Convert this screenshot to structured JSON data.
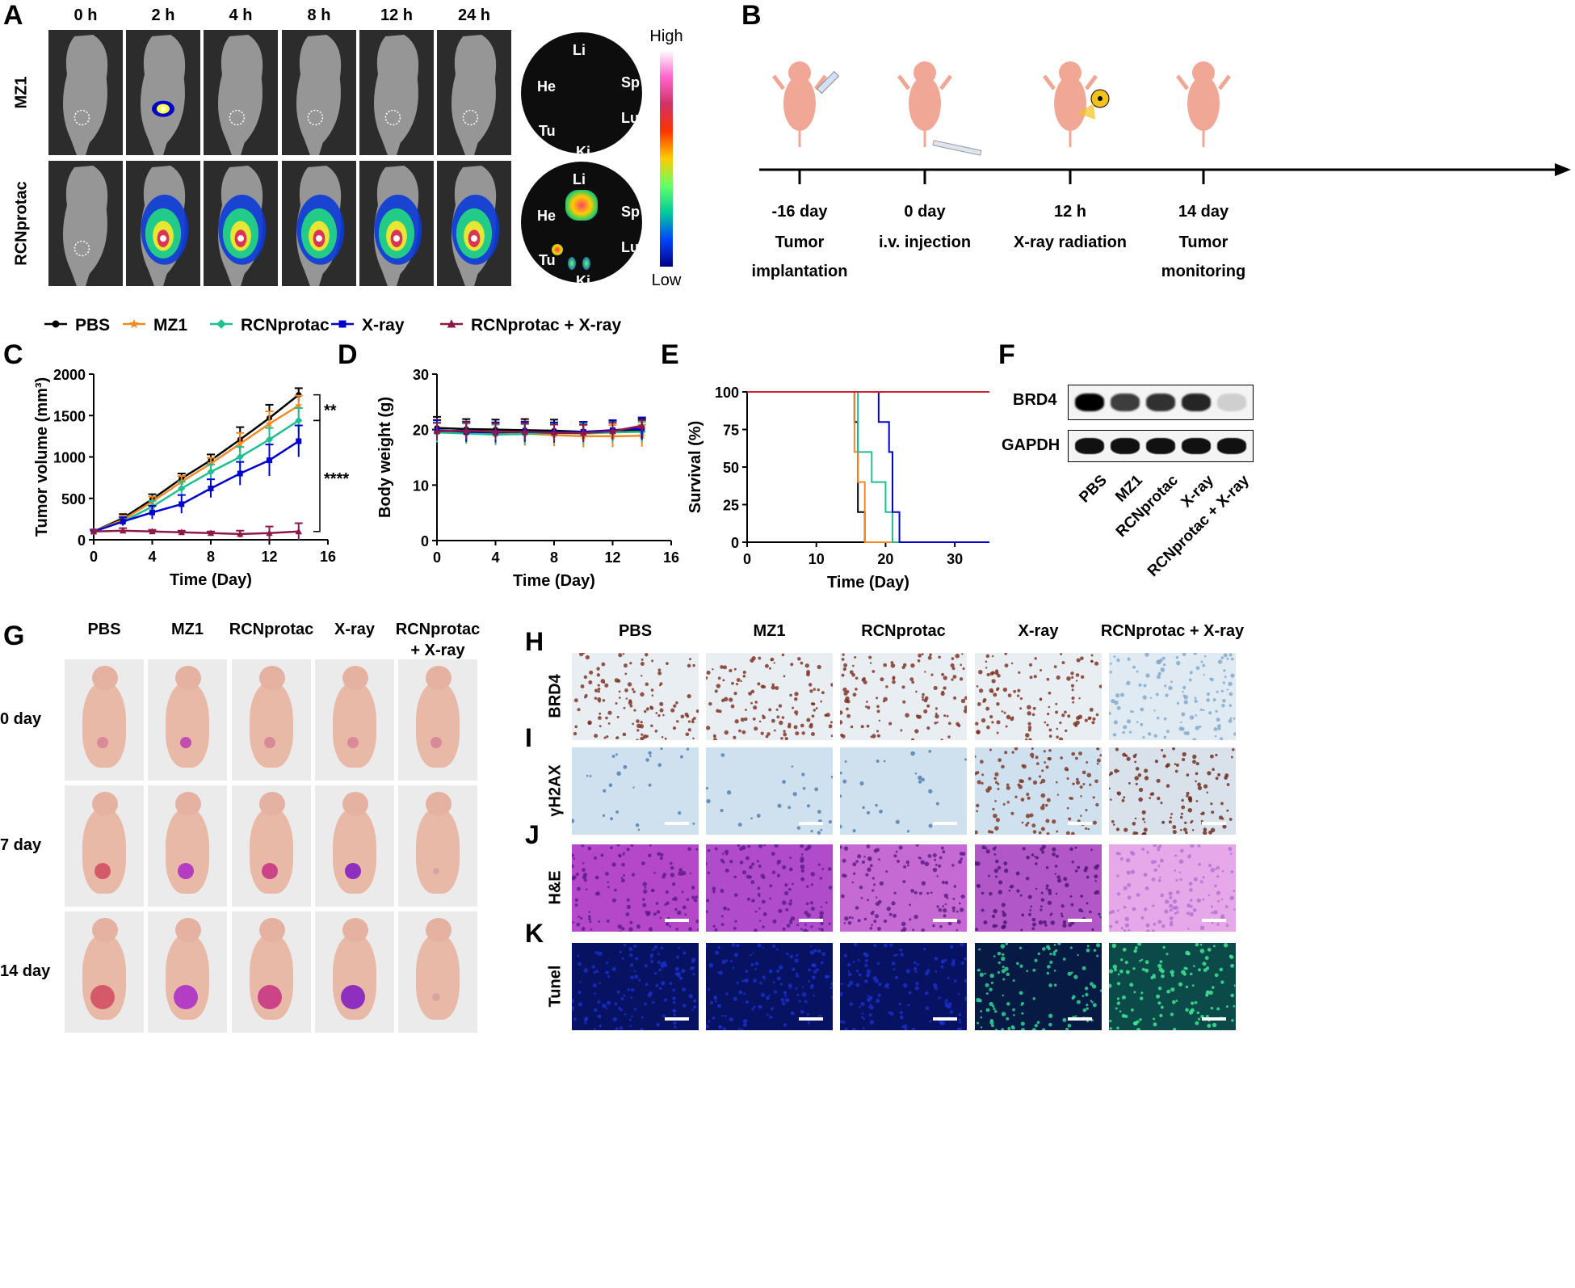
{
  "panelA": {
    "letter": "A",
    "times": [
      "0 h",
      "2 h",
      "4 h",
      "8 h",
      "12 h",
      "24 h"
    ],
    "rows": [
      "MZ1",
      "RCNprotac"
    ],
    "organs": [
      "Li",
      "He",
      "Sp",
      "Tu",
      "Lu",
      "Ki"
    ],
    "colorbar": {
      "high": "High",
      "low": "Low",
      "colors": [
        "#ffffff",
        "#ff66cc",
        "#cc3366",
        "#ff3300",
        "#ffcc00",
        "#66ff66",
        "#00cc99",
        "#0044ff",
        "#000080"
      ]
    }
  },
  "panelB": {
    "letter": "B",
    "steps": [
      {
        "time": "-16 day",
        "line1": "Tumor",
        "line2": "implantation"
      },
      {
        "time": "0 day",
        "line1": "i.v. injection",
        "line2": ""
      },
      {
        "time": "12 h",
        "line1": "X-ray radiation",
        "line2": ""
      },
      {
        "time": "14 day",
        "line1": "Tumor",
        "line2": "monitoring"
      }
    ]
  },
  "legend": [
    {
      "name": "PBS",
      "color": "#000000",
      "marker": "circle"
    },
    {
      "name": "MZ1",
      "color": "#f08a24",
      "marker": "star"
    },
    {
      "name": "RCNprotac",
      "color": "#1fbf8f",
      "marker": "diamond"
    },
    {
      "name": "X-ray",
      "color": "#0000cc",
      "marker": "square"
    },
    {
      "name": "RCNprotac + X-ray",
      "color": "#8b1a4a",
      "marker": "triangle"
    }
  ],
  "chart_data": [
    {
      "panel": "C",
      "type": "line",
      "xlabel": "Time (Day)",
      "ylabel": "Tumor volume (mm³)",
      "xlim": [
        0,
        16
      ],
      "ylim": [
        0,
        2000
      ],
      "xticks": [
        0,
        4,
        8,
        12,
        16
      ],
      "yticks": [
        0,
        500,
        1000,
        1500,
        2000
      ],
      "x": [
        0,
        2,
        4,
        6,
        8,
        10,
        12,
        14
      ],
      "series": [
        {
          "name": "PBS",
          "color": "#000000",
          "values": [
            100,
            260,
            490,
            740,
            960,
            1210,
            1470,
            1750
          ],
          "err": [
            20,
            50,
            60,
            60,
            70,
            150,
            160,
            80
          ]
        },
        {
          "name": "MZ1",
          "color": "#f08a24",
          "values": [
            100,
            240,
            460,
            700,
            920,
            1160,
            1400,
            1620
          ],
          "err": [
            20,
            50,
            60,
            70,
            70,
            130,
            150,
            120
          ]
        },
        {
          "name": "RCNprotac",
          "color": "#1fbf8f",
          "values": [
            100,
            220,
            400,
            620,
            820,
            1000,
            1210,
            1440
          ],
          "err": [
            20,
            50,
            70,
            80,
            90,
            120,
            140,
            150
          ]
        },
        {
          "name": "X-ray",
          "color": "#0000cc",
          "values": [
            100,
            220,
            330,
            430,
            620,
            800,
            960,
            1190
          ],
          "err": [
            20,
            50,
            80,
            110,
            110,
            140,
            190,
            190
          ]
        },
        {
          "name": "RCNprotac + X-ray",
          "color": "#8b1a4a",
          "values": [
            100,
            110,
            100,
            90,
            80,
            70,
            80,
            100
          ],
          "err": [
            20,
            30,
            20,
            20,
            20,
            40,
            80,
            100
          ]
        }
      ],
      "annotations": [
        "**",
        "****"
      ]
    },
    {
      "panel": "D",
      "type": "line",
      "xlabel": "Time (Day)",
      "ylabel": "Body weight (g)",
      "xlim": [
        0,
        16
      ],
      "ylim": [
        0,
        30
      ],
      "xticks": [
        0,
        4,
        8,
        12,
        16
      ],
      "yticks": [
        0,
        10,
        20,
        30
      ],
      "x": [
        0,
        2,
        4,
        6,
        8,
        10,
        12,
        14
      ],
      "series": [
        {
          "name": "PBS",
          "color": "#000000",
          "values": [
            20.3,
            20.1,
            20.0,
            19.9,
            19.8,
            19.6,
            19.8,
            19.9
          ],
          "err": [
            2.0,
            1.8,
            1.8,
            2.0,
            2.0,
            1.8,
            1.8,
            2.0
          ]
        },
        {
          "name": "MZ1",
          "color": "#f08a24",
          "values": [
            19.8,
            19.5,
            19.2,
            19.3,
            19.0,
            18.8,
            18.8,
            18.9
          ],
          "err": [
            2.0,
            2.0,
            2.0,
            2.2,
            2.0,
            2.0,
            2.0,
            2.0
          ]
        },
        {
          "name": "RCNprotac",
          "color": "#1fbf8f",
          "values": [
            19.5,
            19.3,
            19.1,
            19.2,
            19.4,
            19.3,
            19.5,
            19.6
          ],
          "err": [
            1.8,
            1.8,
            1.8,
            1.8,
            1.8,
            1.8,
            1.8,
            1.8
          ]
        },
        {
          "name": "X-ray",
          "color": "#0000cc",
          "values": [
            19.9,
            19.6,
            19.5,
            19.6,
            19.5,
            19.6,
            19.9,
            20.2
          ],
          "err": [
            1.8,
            1.8,
            1.8,
            1.8,
            1.8,
            1.8,
            1.8,
            2.0
          ]
        },
        {
          "name": "RCNprotac + X-ray",
          "color": "#8b1a4a",
          "values": [
            19.7,
            19.8,
            19.6,
            19.6,
            19.4,
            19.4,
            19.7,
            20.7
          ],
          "err": [
            1.5,
            1.5,
            1.5,
            1.5,
            1.5,
            1.5,
            1.5,
            1.0
          ]
        }
      ]
    },
    {
      "panel": "E",
      "type": "line",
      "style": "step",
      "xlabel": "Time (Day)",
      "ylabel": "Survival (%)",
      "xlim": [
        0,
        35
      ],
      "ylim": [
        0,
        100
      ],
      "xticks": [
        0,
        10,
        20,
        30
      ],
      "yticks": [
        0,
        25,
        50,
        75,
        100
      ],
      "series": [
        {
          "name": "PBS",
          "color": "#000000",
          "points": [
            [
              0,
              100
            ],
            [
              15.5,
              100
            ],
            [
              15.5,
              80
            ],
            [
              16,
              80
            ],
            [
              16,
              20
            ],
            [
              17,
              20
            ],
            [
              17,
              0
            ],
            [
              35,
              0
            ]
          ]
        },
        {
          "name": "MZ1",
          "color": "#f08a24",
          "points": [
            [
              0,
              100
            ],
            [
              15.5,
              100
            ],
            [
              15.5,
              60
            ],
            [
              16,
              60
            ],
            [
              16,
              40
            ],
            [
              17,
              40
            ],
            [
              17,
              0
            ],
            [
              35,
              0
            ]
          ]
        },
        {
          "name": "RCNprotac",
          "color": "#1fbf8f",
          "points": [
            [
              0,
              100
            ],
            [
              16,
              100
            ],
            [
              16,
              60
            ],
            [
              18,
              60
            ],
            [
              18,
              40
            ],
            [
              20,
              40
            ],
            [
              20,
              20
            ],
            [
              21,
              20
            ],
            [
              21,
              0
            ],
            [
              35,
              0
            ]
          ]
        },
        {
          "name": "X-ray",
          "color": "#0000cc",
          "points": [
            [
              0,
              100
            ],
            [
              17,
              100
            ],
            [
              17,
              100
            ],
            [
              19,
              100
            ],
            [
              19,
              80
            ],
            [
              20.5,
              80
            ],
            [
              20.5,
              60
            ],
            [
              21,
              60
            ],
            [
              21,
              20
            ],
            [
              22,
              20
            ],
            [
              22,
              0
            ],
            [
              35,
              0
            ]
          ]
        },
        {
          "name": "RCNprotac + X-ray",
          "color": "#cc2233",
          "points": [
            [
              0,
              100
            ],
            [
              35,
              100
            ]
          ]
        }
      ]
    }
  ],
  "panelCletter": "C",
  "panelDletter": "D",
  "panelEletter": "E",
  "panelF": {
    "letter": "F",
    "bands": [
      "BRD4",
      "GAPDH"
    ],
    "lanes": [
      "PBS",
      "MZ1",
      "RCNprotac",
      "X-ray",
      "RCNprotac + X-ray"
    ],
    "brd4_intensity": [
      1.0,
      0.75,
      0.8,
      0.85,
      0.15
    ]
  },
  "panelG": {
    "letter": "G",
    "groups": [
      "PBS",
      "MZ1",
      "RCNprotac",
      "X-ray",
      "RCNprotac\n+ X-ray"
    ],
    "groupLines": [
      [
        "PBS"
      ],
      [
        "MZ1"
      ],
      [
        "RCNprotac"
      ],
      [
        "X-ray"
      ],
      [
        "RCNprotac",
        "+ X-ray"
      ]
    ],
    "days": [
      "0 day",
      "7 day",
      "14 day"
    ]
  },
  "panelHK": {
    "groups": [
      "PBS",
      "MZ1",
      "RCNprotac",
      "X-ray",
      "RCNprotac + X-ray"
    ],
    "rows": [
      {
        "letter": "H",
        "label": "BRD4"
      },
      {
        "letter": "I",
        "label": "γH2AX"
      },
      {
        "letter": "J",
        "label": "H&E"
      },
      {
        "letter": "K",
        "label": "Tunel"
      }
    ]
  }
}
